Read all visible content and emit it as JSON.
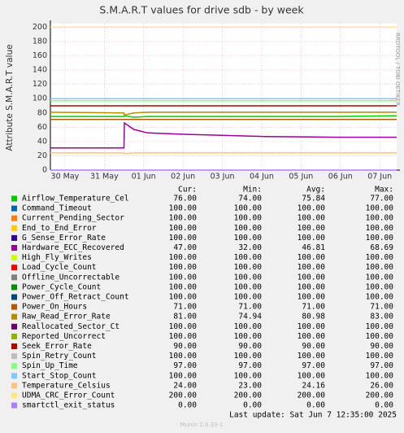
{
  "chart_data": {
    "type": "line",
    "title": "S.M.A.R.T values for drive sdb - by week",
    "y_label": "Attribute S.M.A.R.T value",
    "side_text": "RRDTOOL / TOBI OETIKER",
    "footer": "Last update:  Sat Jun  7 12:35:00 2025",
    "version": "Munin 2.0.33-1",
    "grid": true,
    "ylim": [
      0,
      205
    ],
    "yticks": [
      0,
      20,
      40,
      60,
      80,
      100,
      120,
      140,
      160,
      180,
      200
    ],
    "xlim": [
      -0.37,
      8.43
    ],
    "xticks": [
      {
        "value": 0,
        "label": "30 May"
      },
      {
        "value": 1,
        "label": "31 May"
      },
      {
        "value": 2,
        "label": "01 Jun"
      },
      {
        "value": 3,
        "label": "02 Jun"
      },
      {
        "value": 4,
        "label": "03 Jun"
      },
      {
        "value": 5,
        "label": "04 Jun"
      },
      {
        "value": 6,
        "label": "05 Jun"
      },
      {
        "value": 7,
        "label": "06 Jun"
      },
      {
        "value": 8,
        "label": "07 Jun"
      }
    ],
    "x": [
      -0.37,
      1.5,
      1.51,
      1.75,
      2.1,
      3.1,
      5.1,
      6.9,
      8.43
    ],
    "series": [
      {
        "name": "Airflow_Temperature_Cel",
        "color": "#00cc00",
        "values": [
          75,
          75,
          76,
          74,
          75,
          75,
          75,
          75,
          76
        ]
      },
      {
        "name": "Command_Timeout",
        "color": "#0066b3",
        "values": [
          100,
          100,
          100,
          100,
          100,
          100,
          100,
          100,
          100
        ]
      },
      {
        "name": "Current_Pending_Sector",
        "color": "#ff8000",
        "values": [
          100,
          100,
          100,
          100,
          100,
          100,
          100,
          100,
          100
        ]
      },
      {
        "name": "End_to_End_Error",
        "color": "#ffcc00",
        "values": [
          100,
          100,
          100,
          100,
          100,
          100,
          100,
          100,
          100
        ]
      },
      {
        "name": "G_Sense_Error_Rate",
        "color": "#330099",
        "values": [
          100,
          100,
          100,
          100,
          100,
          100,
          100,
          100,
          100
        ]
      },
      {
        "name": "Hardware_ECC_Recovered",
        "color": "#990099",
        "values": [
          31,
          31,
          66,
          57,
          52,
          50,
          47,
          46,
          46
        ]
      },
      {
        "name": "High_Fly_Writes",
        "color": "#ccff00",
        "values": [
          100,
          100,
          100,
          100,
          100,
          100,
          100,
          100,
          100
        ]
      },
      {
        "name": "Load_Cycle_Count",
        "color": "#ff0000",
        "values": [
          100,
          100,
          100,
          100,
          100,
          100,
          100,
          100,
          100
        ]
      },
      {
        "name": "Offline_Uncorrectable",
        "color": "#808080",
        "values": [
          100,
          100,
          100,
          100,
          100,
          100,
          100,
          100,
          100
        ]
      },
      {
        "name": "Power_Cycle_Count",
        "color": "#008f00",
        "values": [
          100,
          100,
          100,
          100,
          100,
          100,
          100,
          100,
          100
        ]
      },
      {
        "name": "Power_Off_Retract_Count",
        "color": "#00487d",
        "values": [
          100,
          100,
          100,
          100,
          100,
          100,
          100,
          100,
          100
        ]
      },
      {
        "name": "Power_On_Hours",
        "color": "#b35a00",
        "values": [
          71,
          71,
          71,
          71,
          71,
          71,
          71,
          71,
          71
        ]
      },
      {
        "name": "Raw_Read_Error_Rate",
        "color": "#b38f00",
        "values": [
          81,
          80,
          77,
          80,
          81,
          81,
          81,
          81,
          81
        ]
      },
      {
        "name": "Reallocated_Sector_Ct",
        "color": "#6b006b",
        "values": [
          100,
          100,
          100,
          100,
          100,
          100,
          100,
          100,
          100
        ]
      },
      {
        "name": "Reported_Uncorrect",
        "color": "#8fb300",
        "values": [
          100,
          100,
          100,
          100,
          100,
          100,
          100,
          100,
          100
        ]
      },
      {
        "name": "Seek_Error_Rate",
        "color": "#b30000",
        "values": [
          90,
          90,
          90,
          90,
          90,
          90,
          90,
          90,
          90
        ]
      },
      {
        "name": "Spin_Retry_Count",
        "color": "#bebebe",
        "values": [
          100,
          100,
          100,
          100,
          100,
          100,
          100,
          100,
          100
        ]
      },
      {
        "name": "Spin_Up_Time",
        "color": "#80ff80",
        "values": [
          97,
          97,
          97,
          97,
          97,
          97,
          97,
          97,
          97
        ]
      },
      {
        "name": "Start_Stop_Count",
        "color": "#80c9ff",
        "values": [
          100,
          100,
          100,
          100,
          100,
          100,
          100,
          100,
          100
        ]
      },
      {
        "name": "Temperature_Celsius",
        "color": "#ffc080",
        "values": [
          24,
          24,
          23,
          24,
          24,
          24,
          24,
          24,
          24
        ]
      },
      {
        "name": "UDMA_CRC_Error_Count",
        "color": "#ffe680",
        "values": [
          200,
          200,
          200,
          200,
          200,
          200,
          200,
          200,
          200
        ]
      },
      {
        "name": "smartctl_exit_status",
        "color": "#aa80ff",
        "values": [
          0,
          0,
          0,
          0,
          0,
          0,
          0,
          0,
          0
        ]
      }
    ],
    "stats": {
      "columns": [
        "Cur:",
        "Min:",
        "Avg:",
        "Max:"
      ],
      "rows": [
        [
          "76.00",
          "74.00",
          "75.84",
          "77.00"
        ],
        [
          "100.00",
          "100.00",
          "100.00",
          "100.00"
        ],
        [
          "100.00",
          "100.00",
          "100.00",
          "100.00"
        ],
        [
          "100.00",
          "100.00",
          "100.00",
          "100.00"
        ],
        [
          "100.00",
          "100.00",
          "100.00",
          "100.00"
        ],
        [
          "47.00",
          "32.00",
          "46.81",
          "68.69"
        ],
        [
          "100.00",
          "100.00",
          "100.00",
          "100.00"
        ],
        [
          "100.00",
          "100.00",
          "100.00",
          "100.00"
        ],
        [
          "100.00",
          "100.00",
          "100.00",
          "100.00"
        ],
        [
          "100.00",
          "100.00",
          "100.00",
          "100.00"
        ],
        [
          "100.00",
          "100.00",
          "100.00",
          "100.00"
        ],
        [
          "71.00",
          "71.00",
          "71.00",
          "71.00"
        ],
        [
          "81.00",
          "74.94",
          "80.98",
          "83.00"
        ],
        [
          "100.00",
          "100.00",
          "100.00",
          "100.00"
        ],
        [
          "100.00",
          "100.00",
          "100.00",
          "100.00"
        ],
        [
          "90.00",
          "90.00",
          "90.00",
          "90.00"
        ],
        [
          "100.00",
          "100.00",
          "100.00",
          "100.00"
        ],
        [
          "97.00",
          "97.00",
          "97.00",
          "97.00"
        ],
        [
          "100.00",
          "100.00",
          "100.00",
          "100.00"
        ],
        [
          "24.00",
          "23.00",
          "24.16",
          "26.00"
        ],
        [
          "200.00",
          "200.00",
          "200.00",
          "200.00"
        ],
        [
          "0.00",
          "0.00",
          "0.00",
          "0.00"
        ]
      ]
    }
  }
}
